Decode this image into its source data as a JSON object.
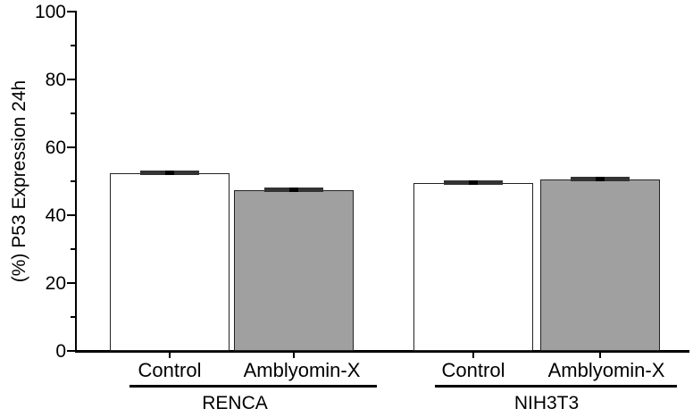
{
  "figure": {
    "background": "#ffffff",
    "text_color": "#000000"
  },
  "chart_data": {
    "type": "bar",
    "title": "",
    "xlabel": "",
    "ylabel": "(%) P53 Expression 24h",
    "ylim": [
      0,
      100
    ],
    "yticks_major": [
      0,
      20,
      40,
      60,
      80,
      100
    ],
    "yticks_minor": [
      10,
      30,
      50,
      70,
      90
    ],
    "grid": false,
    "legend": "none",
    "bar_outline_color": "#222222",
    "error_cap_color": "#333333",
    "groups": [
      {
        "name": "RENCA",
        "bars": [
          {
            "label": "Control",
            "value": 52.5,
            "error": 0.5,
            "fill": "#ffffff"
          },
          {
            "label": "Amblyomin-X",
            "value": 47.5,
            "error": 0.5,
            "fill": "#a0a0a0"
          }
        ]
      },
      {
        "name": "NIH3T3",
        "bars": [
          {
            "label": "Control",
            "value": 49.5,
            "error": 0.5,
            "fill": "#ffffff"
          },
          {
            "label": "Amblyomin-X",
            "value": 50.5,
            "error": 0.5,
            "fill": "#a0a0a0"
          }
        ]
      }
    ]
  }
}
